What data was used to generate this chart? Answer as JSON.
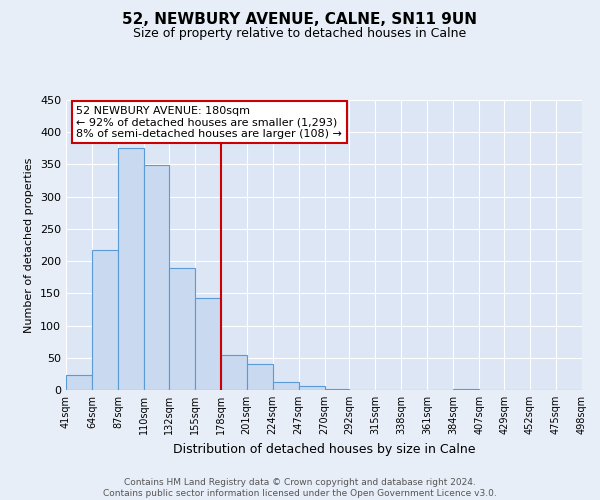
{
  "title": "52, NEWBURY AVENUE, CALNE, SN11 9UN",
  "subtitle": "Size of property relative to detached houses in Calne",
  "xlabel": "Distribution of detached houses by size in Calne",
  "ylabel": "Number of detached properties",
  "bar_edges": [
    41,
    64,
    87,
    110,
    132,
    155,
    178,
    201,
    224,
    247,
    270,
    292,
    315,
    338,
    361,
    384,
    407,
    429,
    452,
    475,
    498
  ],
  "bar_heights": [
    24,
    218,
    376,
    349,
    189,
    142,
    55,
    40,
    13,
    6,
    1,
    0,
    0,
    0,
    0,
    1,
    0,
    0,
    0,
    0
  ],
  "bar_color": "#c8d9f0",
  "bar_edge_color": "#5b9bd5",
  "reference_line_x": 178,
  "reference_line_color": "#cc0000",
  "annotation_line1": "52 NEWBURY AVENUE: 180sqm",
  "annotation_line2": "← 92% of detached houses are smaller (1,293)",
  "annotation_line3": "8% of semi-detached houses are larger (108) →",
  "ylim": [
    0,
    450
  ],
  "yticks": [
    0,
    50,
    100,
    150,
    200,
    250,
    300,
    350,
    400,
    450
  ],
  "tick_labels": [
    "41sqm",
    "64sqm",
    "87sqm",
    "110sqm",
    "132sqm",
    "155sqm",
    "178sqm",
    "201sqm",
    "224sqm",
    "247sqm",
    "270sqm",
    "292sqm",
    "315sqm",
    "338sqm",
    "361sqm",
    "384sqm",
    "407sqm",
    "429sqm",
    "452sqm",
    "475sqm",
    "498sqm"
  ],
  "footer_line1": "Contains HM Land Registry data © Crown copyright and database right 2024.",
  "footer_line2": "Contains public sector information licensed under the Open Government Licence v3.0.",
  "background_color": "#e8eef7",
  "plot_bg_color": "#dce6f5",
  "grid_color": "#ffffff",
  "title_fontsize": 11,
  "subtitle_fontsize": 9,
  "ylabel_fontsize": 8,
  "xlabel_fontsize": 9,
  "tick_fontsize": 7,
  "ytick_fontsize": 8,
  "annotation_fontsize": 8,
  "footer_fontsize": 6.5
}
